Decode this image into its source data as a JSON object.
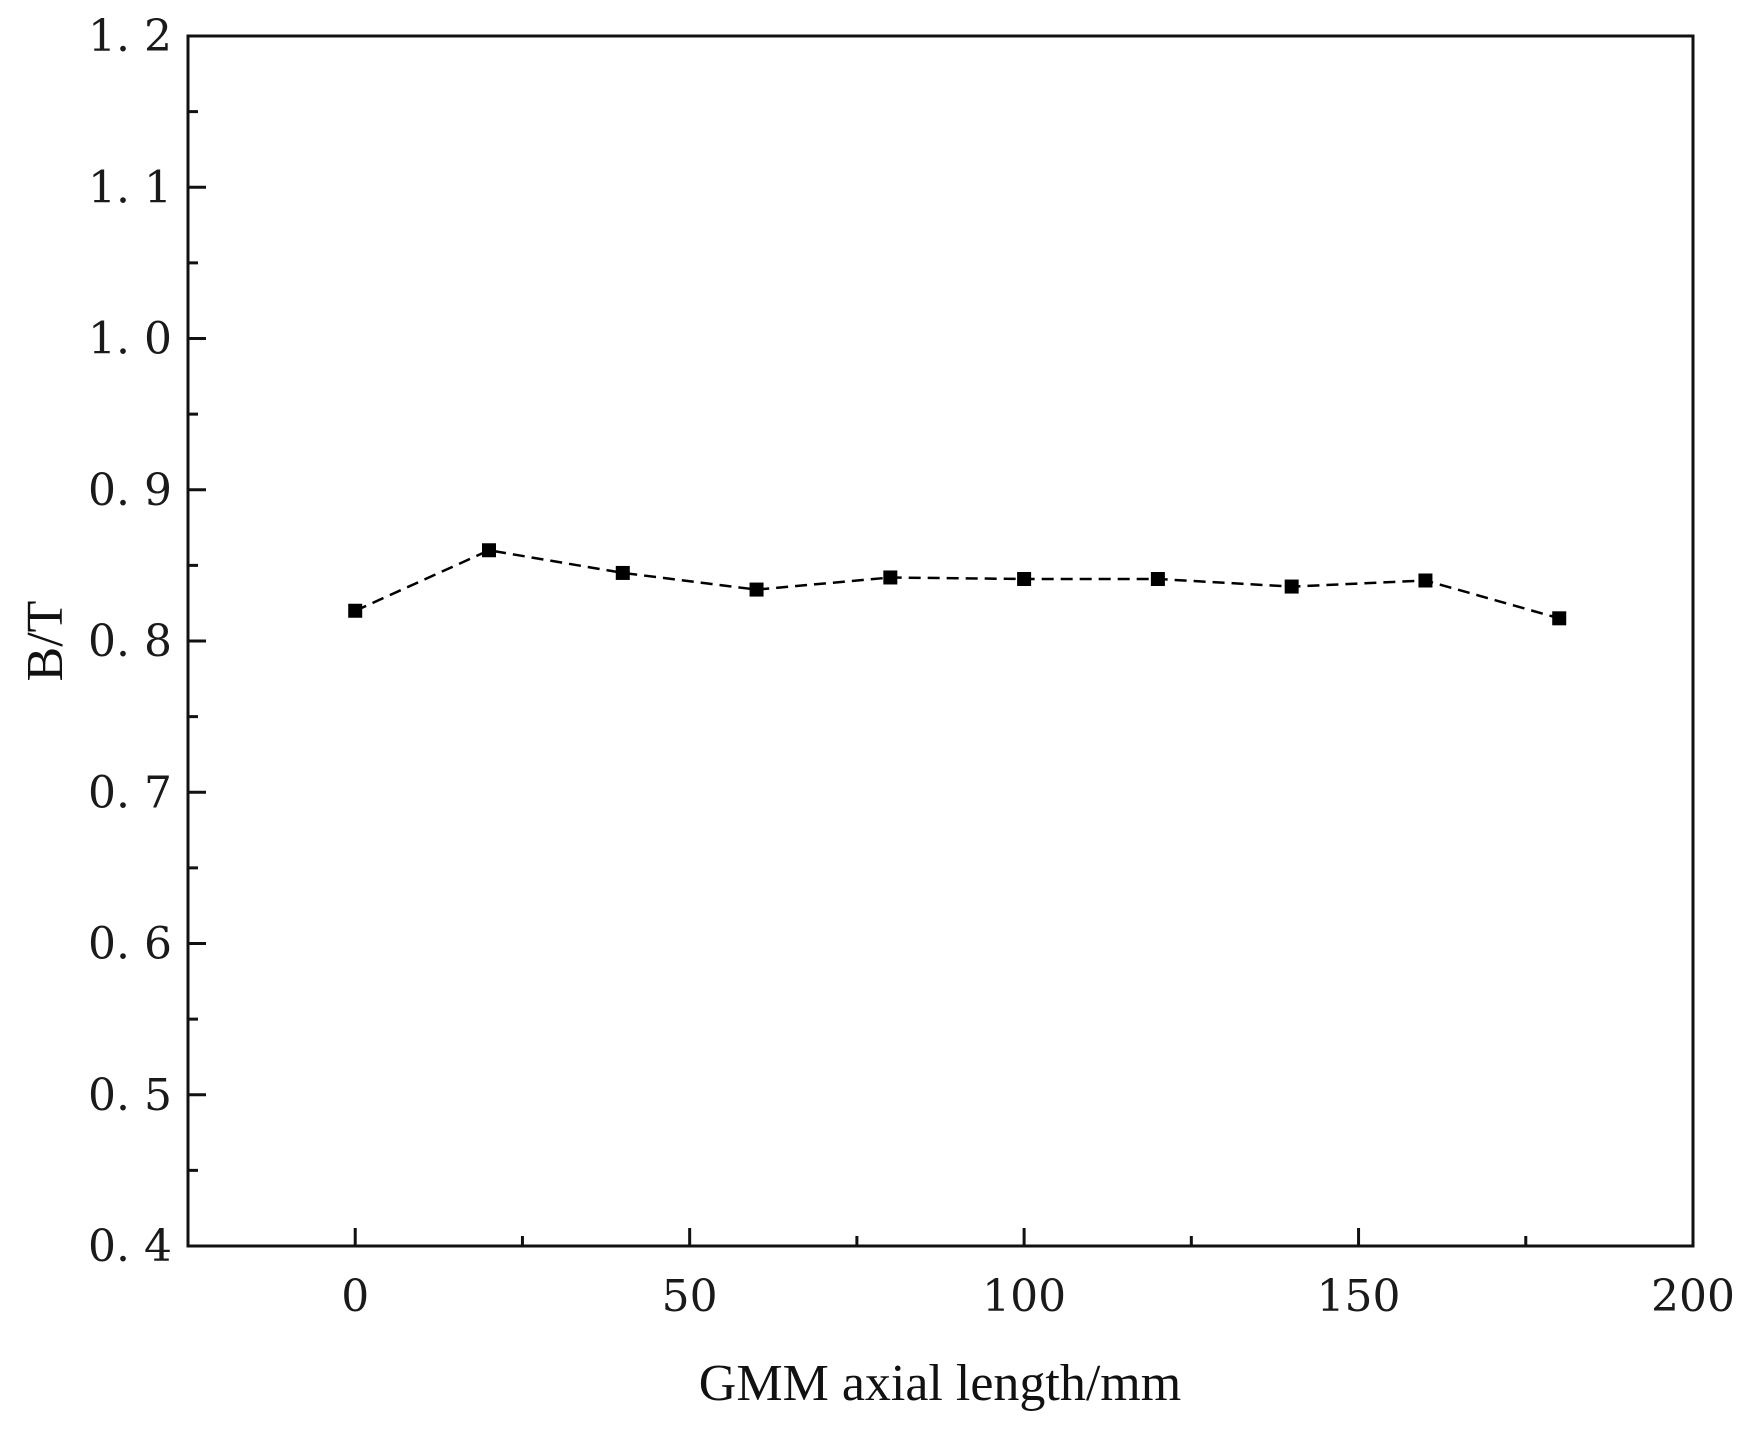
{
  "chart_data": {
    "type": "line",
    "xlabel": "GMM axial length/mm",
    "ylabel": "B/T",
    "xlim": [
      -25,
      200
    ],
    "ylim": [
      0.4,
      1.2
    ],
    "x_ticks": [
      0,
      50,
      100,
      150,
      200
    ],
    "x_tick_labels": [
      "0",
      "50",
      "100",
      "150",
      "200"
    ],
    "y_ticks": [
      0.4,
      0.5,
      0.6,
      0.7,
      0.8,
      0.9,
      1.0,
      1.1,
      1.2
    ],
    "y_tick_labels": [
      "0. 4",
      "0. 5",
      "0. 6",
      "0. 7",
      "0. 8",
      "0. 9",
      "1. 0",
      "1. 1",
      "1. 2"
    ],
    "grid": false,
    "line_style": "dashed",
    "marker": "square",
    "color": "#000000",
    "series": [
      {
        "x": [
          0,
          20,
          40,
          60,
          80,
          100,
          120,
          140,
          160,
          180
        ],
        "y": [
          0.82,
          0.86,
          0.845,
          0.834,
          0.842,
          0.841,
          0.841,
          0.836,
          0.84,
          0.815
        ]
      }
    ]
  }
}
